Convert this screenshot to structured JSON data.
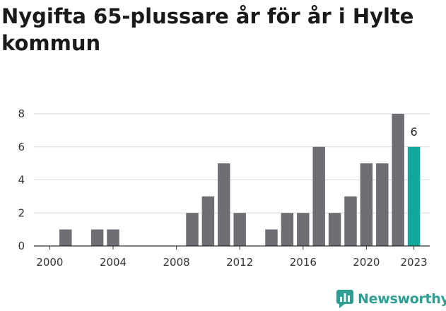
{
  "page": {
    "title": "Nygifta 65-plussare år för år i Hylte kommun",
    "brand": "Newsworthy",
    "brand_icon": "newsworthy-logo-icon"
  },
  "colors": {
    "bar": "#6e6d73",
    "highlight": "#13a89a",
    "grid": "#d9d9d9",
    "axis": "#333333",
    "brand": "#2e9e93"
  },
  "chart_data": {
    "type": "bar",
    "title": "Nygifta 65-plussare år för år i Hylte kommun",
    "xlabel": "",
    "ylabel": "",
    "x": [
      2000,
      2001,
      2002,
      2003,
      2004,
      2005,
      2006,
      2007,
      2008,
      2009,
      2010,
      2011,
      2012,
      2013,
      2014,
      2015,
      2016,
      2017,
      2018,
      2019,
      2020,
      2021,
      2022,
      2023
    ],
    "values": [
      0,
      1,
      0,
      1,
      1,
      0,
      0,
      0,
      0,
      2,
      3,
      5,
      2,
      0,
      1,
      2,
      2,
      6,
      2,
      3,
      5,
      5,
      8,
      6
    ],
    "highlight_x": 2023,
    "highlight_label": "6",
    "ylim": [
      0,
      8
    ],
    "yticks": [
      0,
      2,
      4,
      6,
      8
    ],
    "xticks": [
      2000,
      2004,
      2008,
      2012,
      2016,
      2020,
      2023
    ],
    "grid": "horizontal"
  }
}
